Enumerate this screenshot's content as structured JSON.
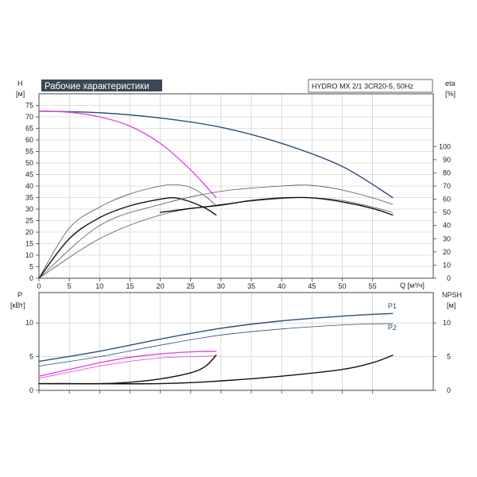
{
  "chart_data": [
    {
      "type": "line",
      "title": "Рабочие характеристики",
      "subtitle": "HYDRO MX 2/1 3CR20-5, 50Hz",
      "xlabel": "Q [м³/ч]",
      "ylabel_left": [
        "H",
        "[м]"
      ],
      "ylabel_right": [
        "eta",
        "[%]"
      ],
      "xlim": [
        0,
        65
      ],
      "ylim": [
        0,
        80
      ],
      "y2lim": [
        0,
        140
      ],
      "x_ticks": [
        0,
        5,
        10,
        15,
        20,
        25,
        30,
        35,
        40,
        45,
        50,
        55
      ],
      "x_tick_labels": [
        "0",
        "5",
        "10",
        "15",
        "20",
        "25",
        "30",
        "35",
        "40",
        "45",
        "50",
        "55"
      ],
      "y_ticks": [
        0,
        5,
        10,
        15,
        20,
        25,
        30,
        35,
        40,
        45,
        50,
        55,
        60,
        65,
        70,
        75
      ],
      "y_tick_labels": [
        "0",
        "5",
        "10",
        "15",
        "20",
        "25",
        "30",
        "35",
        "40",
        "45",
        "50",
        "55",
        "60",
        "65",
        "70",
        "75"
      ],
      "y2_ticks": [
        0,
        10,
        20,
        30,
        40,
        50,
        60,
        70,
        80,
        90,
        100
      ],
      "y2_tick_labels": [
        "0",
        "10",
        "20",
        "30",
        "40",
        "50",
        "60",
        "70",
        "80",
        "90",
        "100"
      ],
      "grid": true,
      "series": [
        {
          "axis": "left",
          "color": "#2a4f7c",
          "width": 1.4,
          "x": [
            0,
            10,
            20,
            30,
            40,
            50,
            58.3
          ],
          "y": [
            72.5,
            71.8,
            69.5,
            65.5,
            58.5,
            48.5,
            35
          ]
        },
        {
          "axis": "left",
          "color": "#e040e0",
          "width": 1.3,
          "x": [
            0,
            5,
            10,
            15,
            20,
            25,
            29.2
          ],
          "y": [
            72.5,
            72,
            70,
            66,
            58.5,
            47,
            35
          ]
        },
        {
          "axis": "right",
          "color": "#555555",
          "width": 0.8,
          "x": [
            0,
            5,
            10,
            15,
            20,
            22.5,
            25,
            27.5,
            29.2
          ],
          "y": [
            0,
            38,
            54,
            64,
            70,
            71,
            69,
            62,
            55
          ]
        },
        {
          "axis": "right",
          "color": "#111111",
          "width": 1.4,
          "x": [
            0,
            5,
            10,
            15,
            20,
            22.5,
            25,
            27.5,
            29.2
          ],
          "y": [
            0,
            30,
            46,
            55,
            60,
            61,
            58,
            53,
            48
          ]
        },
        {
          "axis": "right",
          "color": "#555555",
          "width": 0.8,
          "x": [
            0,
            10,
            20,
            30,
            40,
            45,
            50,
            55,
            58.3
          ],
          "y": [
            0,
            40,
            56,
            66,
            70,
            70.5,
            67,
            61,
            56
          ]
        },
        {
          "axis": "right",
          "color": "#555555",
          "width": 0.8,
          "x": [
            0,
            10,
            20,
            30,
            40,
            45,
            50,
            55,
            58.3
          ],
          "y": [
            0,
            30,
            48,
            56,
            60.5,
            61,
            59,
            54,
            50
          ]
        },
        {
          "axis": "right",
          "color": "#111111",
          "width": 1.4,
          "x": [
            20,
            25,
            30,
            35,
            40,
            45,
            50,
            55,
            58.3
          ],
          "y": [
            50,
            53,
            55.5,
            59,
            61,
            61,
            58,
            53,
            48
          ]
        }
      ]
    },
    {
      "type": "line",
      "ylabel_left": [
        "P",
        "[кВт]"
      ],
      "ylabel_right": [
        "NPSH",
        "[м]"
      ],
      "xlim": [
        0,
        65
      ],
      "ylim": [
        0,
        14.5
      ],
      "y2lim": [
        0,
        14.5
      ],
      "y_ticks": [
        0,
        5,
        10
      ],
      "y_tick_labels": [
        "0",
        "5",
        "10"
      ],
      "y2_ticks": [
        0,
        5,
        10
      ],
      "y2_tick_labels": [
        "0",
        "5",
        "10"
      ],
      "grid": true,
      "series_labels": [
        {
          "text": "P1",
          "x": 58.3,
          "y": 12.5,
          "color": "#2a4f7c"
        },
        {
          "text": "P2",
          "x": 58.3,
          "y": 9.3,
          "color": "#2a4f7c"
        }
      ],
      "series": [
        {
          "color": "#2a4f7c",
          "width": 1.4,
          "x": [
            0,
            10,
            20,
            30,
            40,
            50,
            58.3
          ],
          "y": [
            4.3,
            5.8,
            7.6,
            9.2,
            10.3,
            11,
            11.4
          ]
        },
        {
          "color": "#2a4f7c",
          "width": 0.8,
          "x": [
            0,
            10,
            20,
            30,
            40,
            50,
            58.3
          ],
          "y": [
            3.6,
            5,
            6.7,
            8.2,
            9.1,
            9.7,
            9.9
          ]
        },
        {
          "color": "#e040e0",
          "width": 1.3,
          "x": [
            0,
            5,
            10,
            15,
            20,
            25,
            29.2
          ],
          "y": [
            2.1,
            3.1,
            4.1,
            4.9,
            5.4,
            5.7,
            5.8
          ]
        },
        {
          "color": "#e040e0",
          "width": 0.8,
          "x": [
            0,
            5,
            10,
            15,
            20,
            25,
            29.2
          ],
          "y": [
            1.8,
            2.7,
            3.6,
            4.3,
            4.8,
            5.0,
            5.1
          ]
        },
        {
          "color": "#111111",
          "width": 1.4,
          "x": [
            0,
            10,
            15,
            20,
            25,
            27.5,
            29.2
          ],
          "y": [
            1,
            1,
            1.2,
            1.7,
            2.6,
            3.6,
            5.2
          ]
        },
        {
          "color": "#111111",
          "width": 1.4,
          "x": [
            0,
            20,
            30,
            40,
            50,
            55,
            58.3
          ],
          "y": [
            1,
            1,
            1.4,
            2.1,
            3.1,
            4.1,
            5.2
          ]
        }
      ]
    }
  ]
}
